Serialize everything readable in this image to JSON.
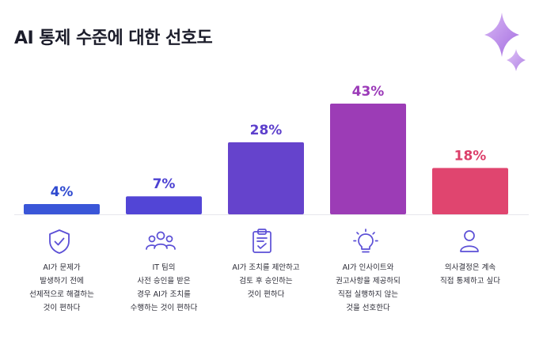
{
  "chart_data": {
    "type": "bar",
    "title": "AI 통제 수준에 대한 선호도",
    "categories": [
      "AI가 문제가\n발생하기 전에\n선제적으로 해결하는\n것이 편하다",
      "IT 팀의\n사전 승인을 받은\n경우 AI가 조치를\n수행하는 것이 편하다",
      "AI가 조치를 제안하고\n검토 후 승인하는\n것이 편하다",
      "AI가 인사이트와\n권고사항을 제공하되\n직접 실행하지 않는\n것을 선호한다",
      "의사결정은 계속\n직접 통제하고 싶다"
    ],
    "values": [
      4,
      7,
      28,
      43,
      18
    ],
    "value_labels": [
      "4%",
      "7%",
      "28%",
      "43%",
      "18%"
    ],
    "ylim": [
      0,
      43
    ],
    "grid": false,
    "bar_colors": [
      "#3a56d8",
      "#5245d6",
      "#6543cc",
      "#9c3cb6",
      "#e0456f"
    ],
    "label_colors": [
      "#2f4ad0",
      "#4c41d2",
      "#5d3fcc",
      "#9b3ab8",
      "#dc3f6a"
    ],
    "icons": [
      "shield-check-icon",
      "team-icon",
      "clipboard-check-icon",
      "lightbulb-icon",
      "person-icon"
    ],
    "icon_color": "#5b4fd6",
    "accent_color": "#b88de8"
  }
}
